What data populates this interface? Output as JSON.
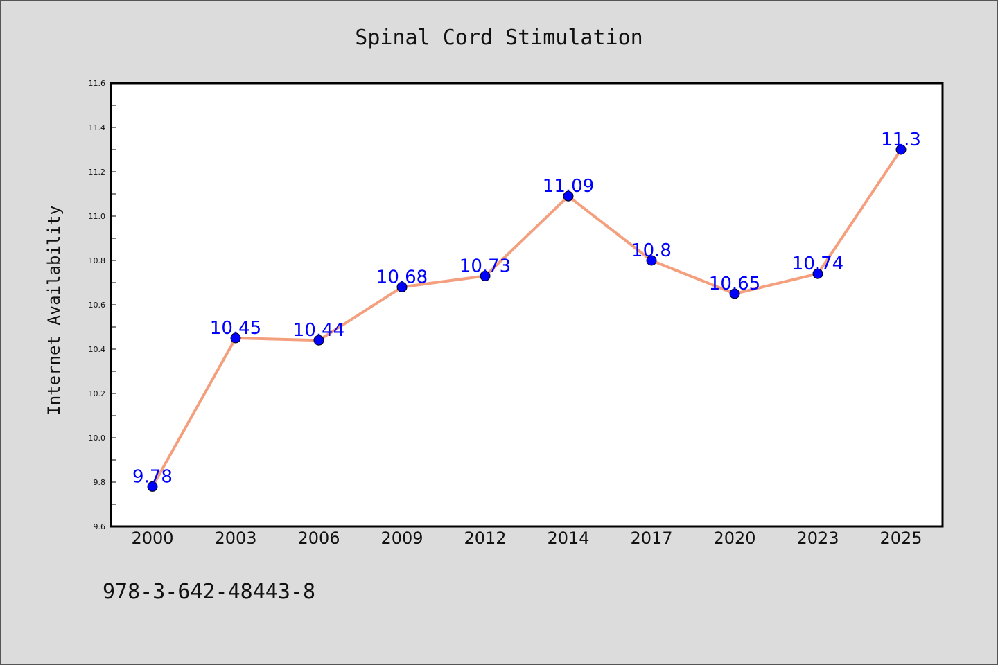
{
  "chart_data": {
    "type": "line",
    "title": "Spinal Cord Stimulation",
    "ylabel": "Internet Availability",
    "xlabel": "",
    "categories": [
      "2000",
      "2003",
      "2006",
      "2009",
      "2012",
      "2014",
      "2017",
      "2020",
      "2023",
      "2025"
    ],
    "series": [
      {
        "values": [
          9.78,
          10.45,
          10.44,
          10.68,
          10.73,
          11.09,
          10.8,
          10.65,
          10.74,
          11.3
        ],
        "labels": [
          "9.78",
          "10.45",
          "10.44",
          "10.68",
          "10.73",
          "11.09",
          "10.8",
          "10.65",
          "10.74",
          "11.3"
        ]
      }
    ],
    "ylim": [
      9.6,
      11.6
    ],
    "y_ticks": [
      "9.6",
      "9.8",
      "10.0",
      "10.2",
      "10.4",
      "10.6",
      "10.8",
      "11.0",
      "11.2",
      "11.4",
      "11.6"
    ],
    "grid": false,
    "line_color": "#f4a07f",
    "marker_color": "#0000ff",
    "label_color": "#0000ff"
  },
  "footnote": "978-3-642-48443-8"
}
